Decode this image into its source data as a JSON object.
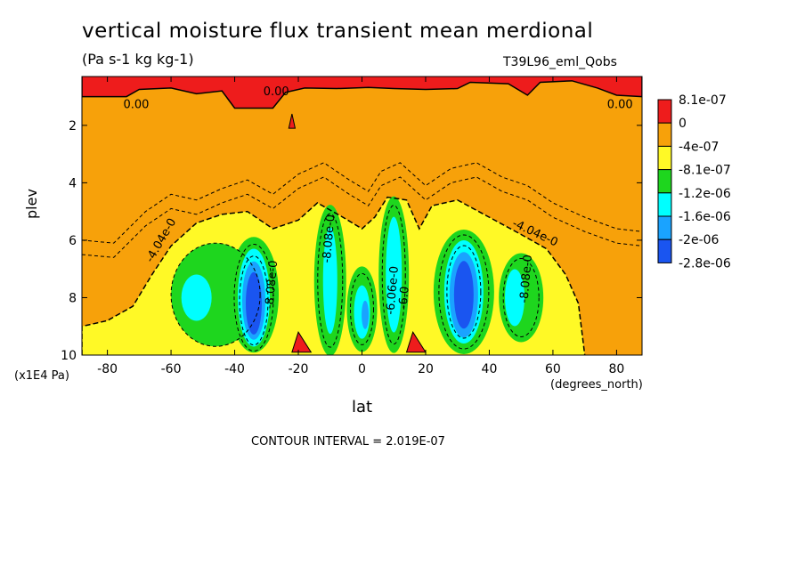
{
  "chart_data": {
    "type": "heatmap",
    "title": "vertical moisture flux transient mean merdional",
    "units": "(Pa s-1 kg kg-1)",
    "run_label": "T39L96_eml_Qobs",
    "xlabel": "lat",
    "x_unit": "(degrees_north)",
    "ylabel": "plev",
    "y_unit": "(x1E4 Pa)",
    "xlim": [
      -88,
      88
    ],
    "ylim": [
      0.3,
      10
    ],
    "y_inverted": true,
    "x_ticks": [
      -80,
      -60,
      -40,
      -20,
      0,
      20,
      40,
      60,
      80
    ],
    "y_ticks": [
      2,
      4,
      6,
      8,
      10
    ],
    "contour_interval": "CONTOUR INTERVAL = 2.019E-07",
    "legend_labels": [
      "8.1e-07",
      "0",
      "-4e-07",
      "-8.1e-07",
      "-1.2e-06",
      "-1.6e-06",
      "-2e-06",
      "-2.8e-06"
    ],
    "legend_colors": [
      "#ee1c1c",
      "#f7a10a",
      "#fff926",
      "#1ed61e",
      "#00ffff",
      "#1aa3ff",
      "#1a55f0"
    ],
    "contour_labels": [
      "0.00",
      "0.00",
      "0.00",
      "-4.04e-0",
      "-4.04e-0",
      "-8.08e-0",
      "-8.08e-0",
      "-8.08e-0",
      "-6.06e-0",
      "-6.0"
    ],
    "positive_cells": [
      {
        "name": "upper flux band",
        "x": [
          -88,
          88
        ],
        "y": [
          0.3,
          1.0
        ]
      },
      {
        "name": "low-level cell near 20S",
        "x": -18,
        "y": 9.6
      },
      {
        "name": "low-level cell near 18N",
        "x": 18,
        "y": 9.6
      }
    ],
    "negative_cells": [
      {
        "name": "southern subtropical cell",
        "center": [
          -34,
          8.0
        ],
        "min_level": "-2.8e-06"
      },
      {
        "name": "southern midlatitude cell",
        "center": [
          -50,
          8.0
        ],
        "min_level": "-1.6e-06"
      },
      {
        "name": "tropical cell 12S",
        "center": [
          -10,
          7.0
        ],
        "min_level": "-1.6e-06"
      },
      {
        "name": "equatorial cell",
        "center": [
          0,
          8.4
        ],
        "min_level": "-2e-06"
      },
      {
        "name": "tropical cell 10N",
        "center": [
          10,
          7.2
        ],
        "min_level": "-1.6e-06"
      },
      {
        "name": "northern subtropical cell",
        "center": [
          32,
          7.8
        ],
        "min_level": "-2.8e-06"
      },
      {
        "name": "northern midlatitude cell",
        "center": [
          48,
          8.0
        ],
        "min_level": "-1.6e-06"
      }
    ]
  }
}
